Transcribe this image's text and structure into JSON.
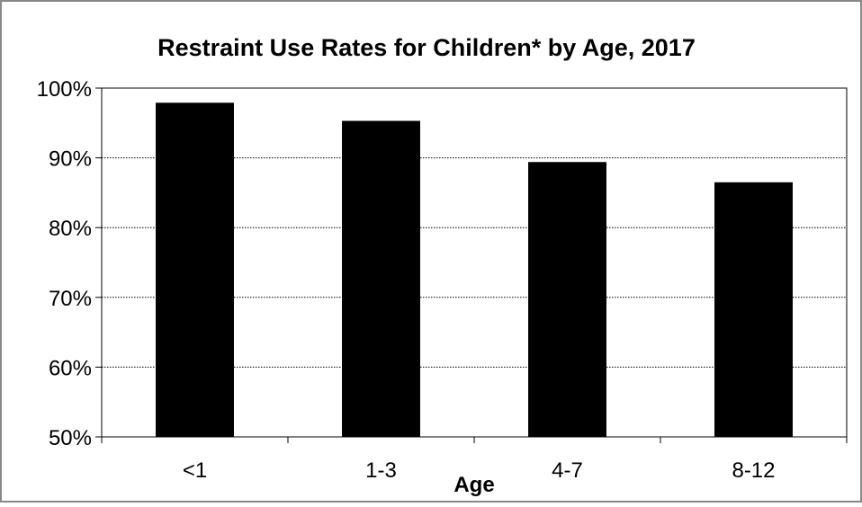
{
  "chart_data": {
    "type": "bar",
    "title": "Restraint Use Rates for Children* by Age, 2017",
    "xlabel": "Age",
    "ylabel": "",
    "categories": [
      "<1",
      "1-3",
      "4-7",
      "8-12"
    ],
    "values": [
      97.9,
      95.3,
      89.4,
      86.5
    ],
    "ylim": [
      50,
      100
    ],
    "yticks": [
      50,
      60,
      70,
      80,
      90,
      100
    ],
    "ytick_labels": [
      "50%",
      "60%",
      "70%",
      "80%",
      "90%",
      "100%"
    ],
    "grid": "horizontal, dotted",
    "legend": "none",
    "bar_color": "#000000"
  }
}
